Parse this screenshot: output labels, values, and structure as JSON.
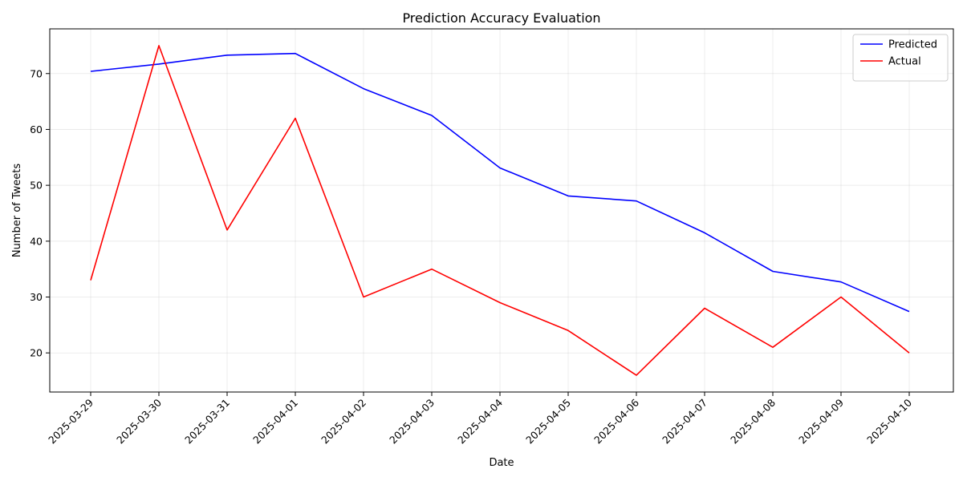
{
  "chart_data": {
    "type": "line",
    "title": "Prediction Accuracy Evaluation",
    "xlabel": "Date",
    "ylabel": "Number of Tweets",
    "categories": [
      "2025-03-29",
      "2025-03-30",
      "2025-03-31",
      "2025-04-01",
      "2025-04-02",
      "2025-04-03",
      "2025-04-04",
      "2025-04-05",
      "2025-04-06",
      "2025-04-07",
      "2025-04-08",
      "2025-04-09",
      "2025-04-10"
    ],
    "series": [
      {
        "name": "Predicted",
        "color": "#0000ff",
        "values": [
          70.4,
          71.7,
          73.3,
          73.6,
          67.3,
          62.5,
          53.1,
          48.1,
          47.2,
          41.5,
          34.6,
          32.7,
          27.4
        ]
      },
      {
        "name": "Actual",
        "color": "#ff0000",
        "values": [
          33,
          75,
          42,
          62,
          30,
          35,
          29,
          24,
          16,
          28,
          21,
          30,
          20
        ]
      }
    ],
    "ylim": [
      13,
      78
    ],
    "yticks": [
      20,
      30,
      40,
      50,
      60,
      70
    ],
    "grid": true,
    "legend_position": "top-right"
  }
}
